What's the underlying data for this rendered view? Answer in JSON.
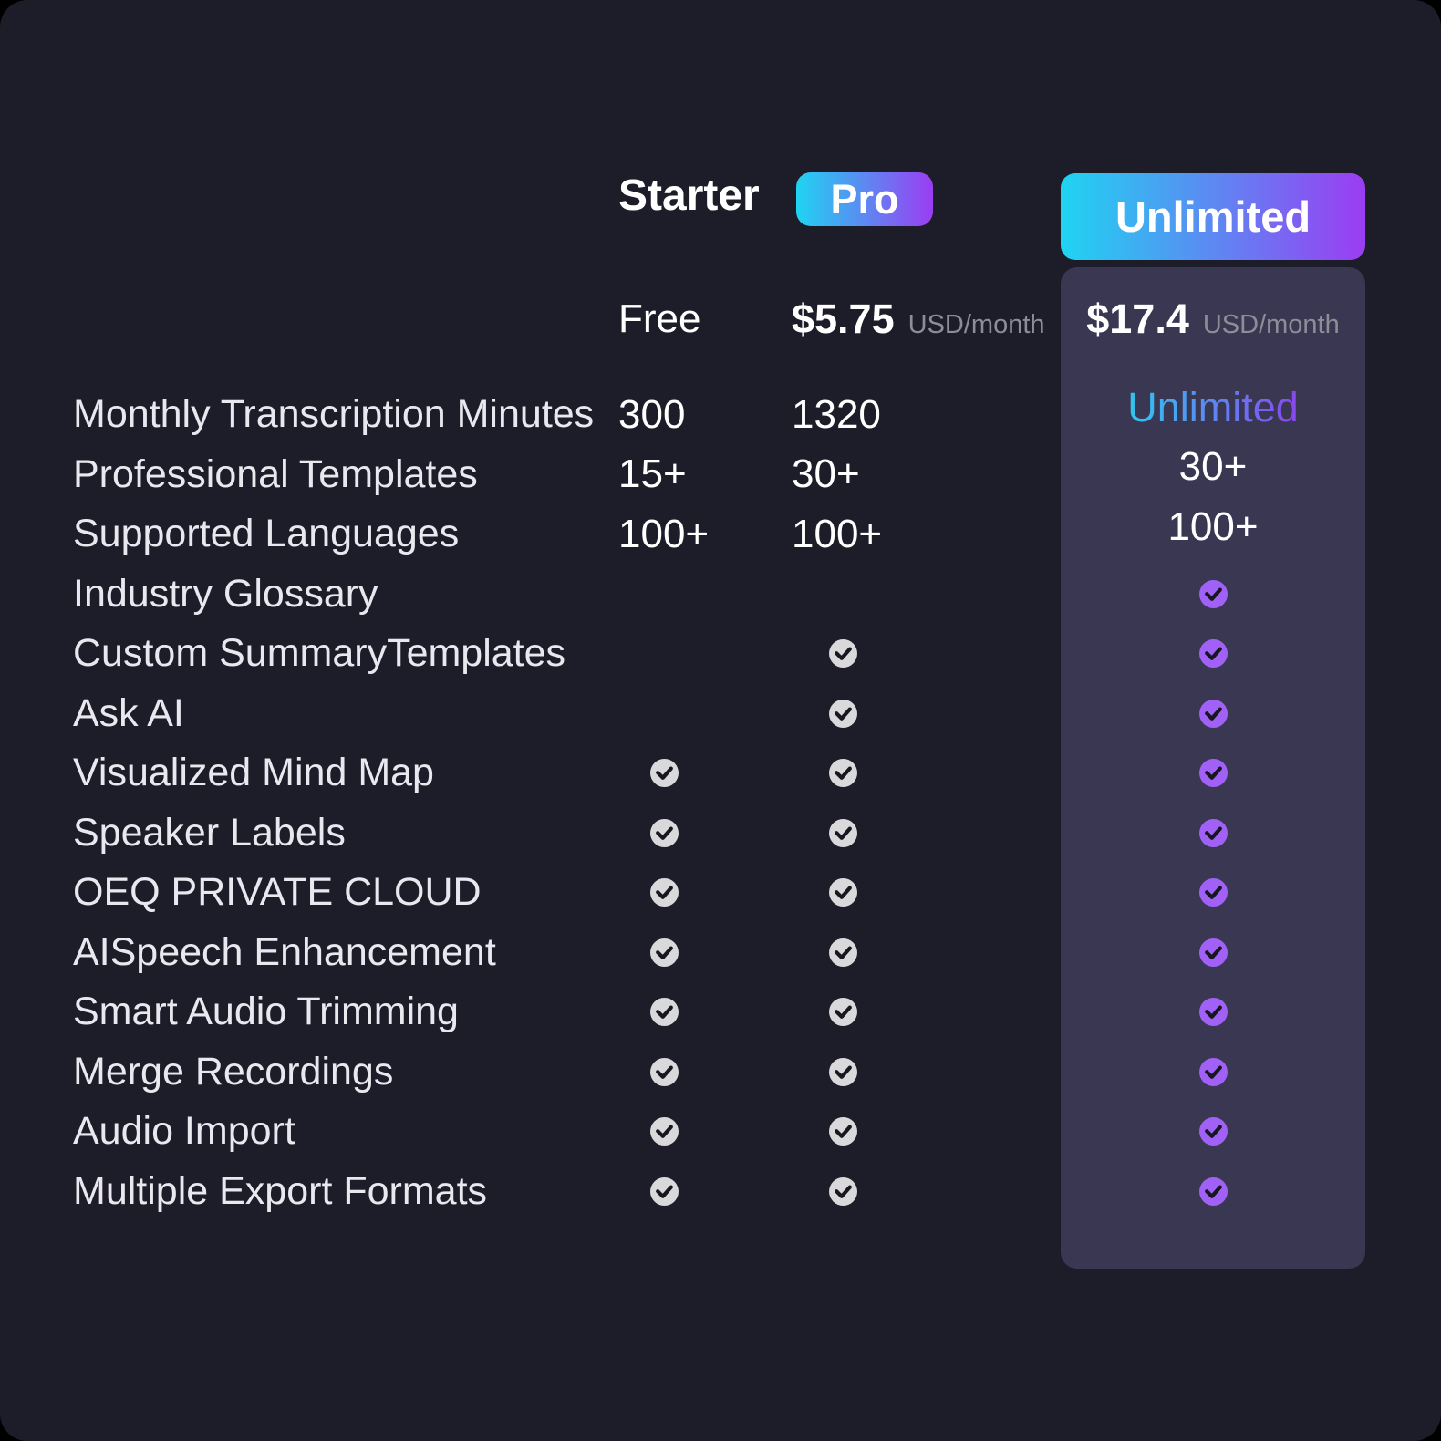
{
  "plans": {
    "starter": {
      "name": "Starter",
      "price": "Free"
    },
    "pro": {
      "name": "Pro",
      "price": "$5.75",
      "price_unit": "USD/month"
    },
    "unlimited": {
      "name": "Unlimited",
      "price": "$17.4",
      "price_unit": "USD/month",
      "highlighted": true
    }
  },
  "features": [
    {
      "label": "Monthly Transcription Minutes",
      "starter": "300",
      "pro": "1320",
      "unlimited": "Unlimited",
      "unlimited_style": "gradient"
    },
    {
      "label": "Professional Templates",
      "starter": "15+",
      "pro": "30+",
      "unlimited": "30+"
    },
    {
      "label": "Supported Languages",
      "starter": "100+",
      "pro": "100+",
      "unlimited": "100+"
    },
    {
      "label": "Industry Glossary",
      "starter": "",
      "pro": "",
      "unlimited": "check"
    },
    {
      "label": "Custom SummaryTemplates",
      "starter": "",
      "pro": "check",
      "unlimited": "check"
    },
    {
      "label": "Ask AI",
      "starter": "",
      "pro": "check",
      "unlimited": "check"
    },
    {
      "label": "Visualized Mind Map",
      "starter": "check",
      "pro": "check",
      "unlimited": "check"
    },
    {
      "label": "Speaker Labels",
      "starter": "check",
      "pro": "check",
      "unlimited": "check"
    },
    {
      "label": "OEQ PRIVATE CLOUD",
      "starter": "check",
      "pro": "check",
      "unlimited": "check"
    },
    {
      "label": "AISpeech Enhancement",
      "starter": "check",
      "pro": "check",
      "unlimited": "check"
    },
    {
      "label": "Smart Audio Trimming",
      "starter": "check",
      "pro": "check",
      "unlimited": "check"
    },
    {
      "label": "Merge Recordings",
      "starter": "check",
      "pro": "check",
      "unlimited": "check"
    },
    {
      "label": "Audio Import",
      "starter": "check",
      "pro": "check",
      "unlimited": "check"
    },
    {
      "label": "Multiple Export Formats",
      "starter": "check",
      "pro": "check",
      "unlimited": "check"
    }
  ],
  "icons": {
    "check": "✓"
  },
  "colors": {
    "background": "#000000",
    "card": "#1d1c29",
    "unlimited_panel": "#393751",
    "accent_gradient_start": "#1fd4f2",
    "accent_gradient_end": "#9b3df2",
    "check_circle_gray": "#d9d9dc",
    "check_circle_purple": "#a161f7",
    "check_mark": "#17171f",
    "muted_text": "#8d8d98",
    "label_text": "#e9e8ef",
    "value_text": "#ffffff"
  }
}
